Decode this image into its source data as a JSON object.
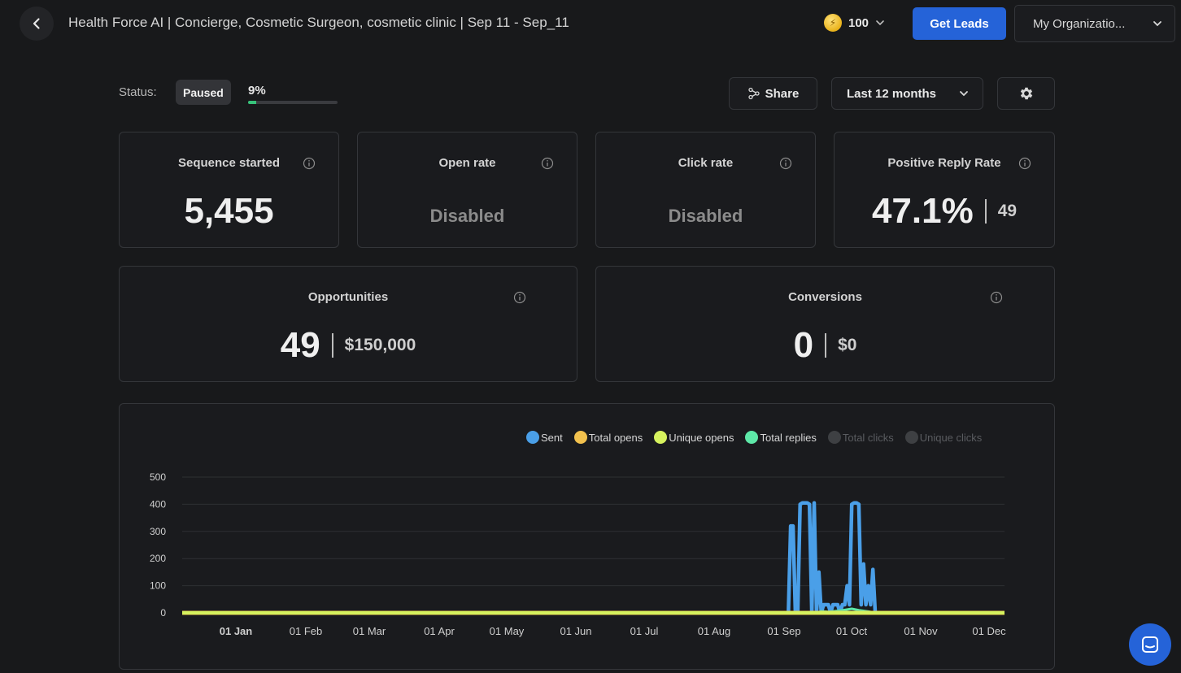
{
  "header": {
    "title": "Health Force AI | Concierge, Cosmetic Surgeon, cosmetic clinic | Sep 11 - Sep_11",
    "credits": "100",
    "get_leads_label": "Get Leads",
    "org_label": "My Organizatio..."
  },
  "status": {
    "label": "Status:",
    "badge": "Paused",
    "progress_text": "9%",
    "progress_fraction": 0.09
  },
  "toolbar": {
    "share_label": "Share",
    "range_label": "Last 12 months"
  },
  "cards": {
    "sequence": {
      "title": "Sequence started",
      "value": "5,455"
    },
    "open_rate": {
      "title": "Open rate",
      "value": "Disabled"
    },
    "click_rate": {
      "title": "Click rate",
      "value": "Disabled"
    },
    "positive": {
      "title": "Positive Reply Rate",
      "value": "47.1%",
      "secondary": "49"
    },
    "opportunities": {
      "title": "Opportunities",
      "value": "49",
      "secondary": "$150,000"
    },
    "conversions": {
      "title": "Conversions",
      "value": "0",
      "secondary": "$0"
    }
  },
  "legend": [
    {
      "label": "Sent",
      "color": "#4a9fe8",
      "active": true
    },
    {
      "label": "Total opens",
      "color": "#f2c14e",
      "active": true
    },
    {
      "label": "Unique opens",
      "color": "#d6f25e",
      "active": true
    },
    {
      "label": "Total replies",
      "color": "#5ee8a8",
      "active": true
    },
    {
      "label": "Total clicks",
      "color": "#3e4043",
      "active": false
    },
    {
      "label": "Unique clicks",
      "color": "#3e4043",
      "active": false
    }
  ],
  "chart_data": {
    "type": "line",
    "x_ticks": [
      "01 Jan",
      "01 Feb",
      "01 Mar",
      "01 Apr",
      "01 May",
      "01 Jun",
      "01 Jul",
      "01 Aug",
      "01 Sep",
      "01 Oct",
      "01 Nov",
      "01 Dec"
    ],
    "y_ticks": [
      0,
      100,
      200,
      300,
      400,
      500
    ],
    "ylim": [
      0,
      500
    ],
    "x_range_days": [
      0,
      350
    ],
    "series": [
      {
        "name": "Sent",
        "color": "#4a9fe8",
        "points": [
          [
            0,
            0
          ],
          [
            258,
            0
          ],
          [
            259,
            320
          ],
          [
            260,
            320
          ],
          [
            261,
            0
          ],
          [
            262,
            0
          ],
          [
            263,
            400
          ],
          [
            264,
            405
          ],
          [
            265,
            405
          ],
          [
            266,
            405
          ],
          [
            267,
            400
          ],
          [
            268,
            0
          ],
          [
            269,
            405
          ],
          [
            270,
            0
          ],
          [
            271,
            150
          ],
          [
            272,
            0
          ],
          [
            273,
            30
          ],
          [
            274,
            30
          ],
          [
            275,
            30
          ],
          [
            276,
            0
          ],
          [
            277,
            30
          ],
          [
            278,
            30
          ],
          [
            279,
            30
          ],
          [
            280,
            0
          ],
          [
            281,
            30
          ],
          [
            282,
            30
          ],
          [
            283,
            100
          ],
          [
            284,
            30
          ],
          [
            285,
            400
          ],
          [
            286,
            405
          ],
          [
            287,
            405
          ],
          [
            288,
            400
          ],
          [
            289,
            30
          ],
          [
            290,
            180
          ],
          [
            291,
            30
          ],
          [
            292,
            100
          ],
          [
            293,
            30
          ],
          [
            294,
            160
          ],
          [
            295,
            0
          ],
          [
            350,
            0
          ]
        ]
      },
      {
        "name": "Total replies",
        "color": "#5ee8a8",
        "points": [
          [
            0,
            0
          ],
          [
            270,
            0
          ],
          [
            272,
            6
          ],
          [
            275,
            4
          ],
          [
            280,
            8
          ],
          [
            285,
            15
          ],
          [
            288,
            10
          ],
          [
            292,
            5
          ],
          [
            295,
            0
          ],
          [
            350,
            0
          ]
        ]
      },
      {
        "name": "Total opens",
        "color": "#f2c14e",
        "points": [
          [
            0,
            0
          ],
          [
            350,
            0
          ]
        ]
      },
      {
        "name": "Unique opens",
        "color": "#d6f25e",
        "points": [
          [
            0,
            0
          ],
          [
            350,
            0
          ]
        ]
      }
    ]
  }
}
